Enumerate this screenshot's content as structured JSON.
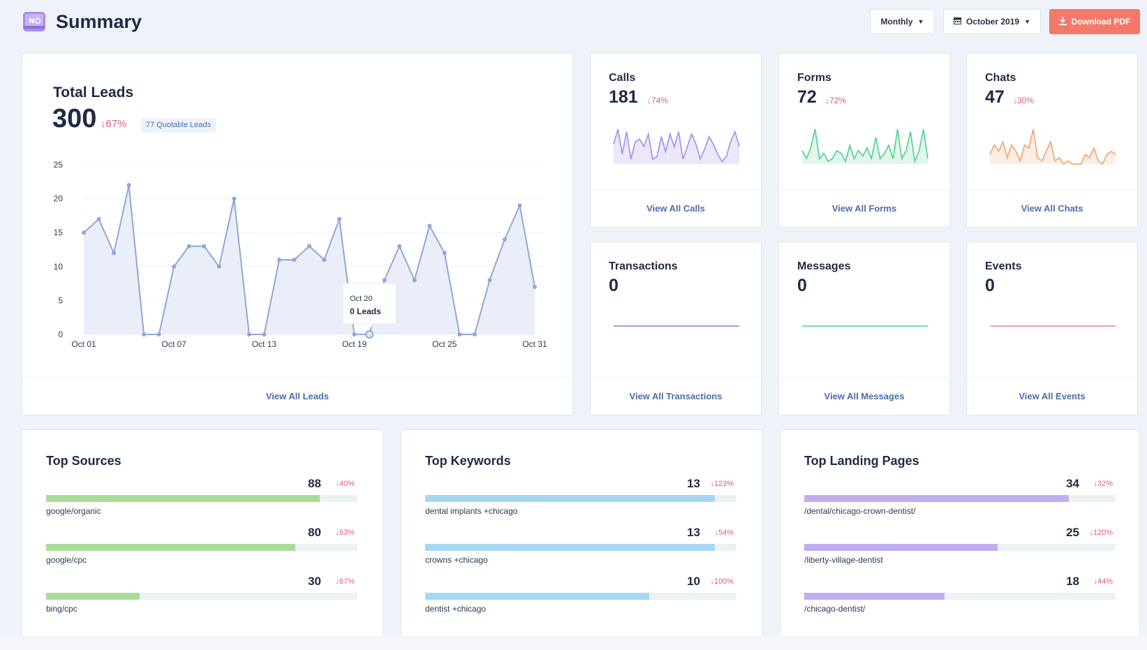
{
  "header": {
    "title": "Summary",
    "period_label": "Monthly",
    "date_label": "October 2019",
    "download_label": "Download PDF",
    "icons": {
      "logo": "logo-icon",
      "calendar": "calendar-icon",
      "download": "download-icon",
      "caret": "caret-down-icon"
    }
  },
  "leads": {
    "title": "Total Leads",
    "total": "300",
    "delta": "↓67%",
    "quotable": "77 Quotable Leads",
    "footer_link": "View All Leads",
    "tooltip": {
      "date": "Oct 20",
      "value": "0 Leads"
    }
  },
  "chart_data": {
    "type": "area",
    "title": "Total Leads",
    "x": [
      "Oct 01",
      "Oct 02",
      "Oct 03",
      "Oct 04",
      "Oct 05",
      "Oct 06",
      "Oct 07",
      "Oct 08",
      "Oct 09",
      "Oct 10",
      "Oct 11",
      "Oct 12",
      "Oct 13",
      "Oct 14",
      "Oct 15",
      "Oct 16",
      "Oct 17",
      "Oct 18",
      "Oct 19",
      "Oct 20",
      "Oct 21",
      "Oct 22",
      "Oct 23",
      "Oct 24",
      "Oct 25",
      "Oct 26",
      "Oct 27",
      "Oct 28",
      "Oct 29",
      "Oct 30",
      "Oct 31"
    ],
    "values": [
      15,
      17,
      12,
      22,
      0,
      0,
      10,
      13,
      13,
      10,
      20,
      0,
      0,
      11,
      11,
      13,
      11,
      17,
      0,
      0,
      8,
      13,
      8,
      16,
      12,
      0,
      0,
      8,
      14,
      19,
      7
    ],
    "x_ticks": [
      "Oct 01",
      "Oct 07",
      "Oct 13",
      "Oct 19",
      "Oct 25",
      "Oct 31"
    ],
    "y_ticks": [
      "0",
      "5",
      "10",
      "15",
      "20",
      "25"
    ],
    "ylim": [
      0,
      25
    ],
    "grid": true,
    "highlight": "Oct 20",
    "color": "#8fa8d8"
  },
  "metrics": [
    {
      "title": "Calls",
      "value": "181",
      "delta": "↓74%",
      "link": "View All Calls",
      "color": "#a996e6",
      "fill": "#ece7fb",
      "spark": [
        8,
        14,
        4,
        13,
        2,
        9,
        10,
        7,
        12,
        2,
        3,
        11,
        5,
        12,
        7,
        13,
        2,
        7,
        12,
        8,
        2,
        6,
        11,
        8,
        4,
        1,
        3,
        9,
        13,
        7
      ]
    },
    {
      "title": "Forms",
      "value": "72",
      "delta": "↓72%",
      "link": "View All Forms",
      "color": "#5fd19a",
      "fill": "#e2f7ec",
      "spark": [
        5,
        2,
        6,
        13,
        2,
        4,
        1,
        2,
        5,
        4,
        1,
        7,
        2,
        5,
        3,
        6,
        2,
        10,
        2,
        4,
        7,
        2,
        13,
        2,
        5,
        12,
        1,
        5,
        13,
        2
      ]
    },
    {
      "title": "Chats",
      "value": "47",
      "delta": "↓30%",
      "link": "View All Chats",
      "color": "#f5a877",
      "fill": "#fdeee4",
      "spark": [
        3,
        6,
        4,
        7,
        2,
        6,
        4,
        1,
        6,
        5,
        11,
        2,
        1,
        4,
        7,
        1,
        2,
        0,
        1,
        0,
        0,
        0,
        3,
        2,
        5,
        1,
        0,
        3,
        4,
        3
      ]
    },
    {
      "title": "Transactions",
      "value": "0",
      "link": "View All Transactions",
      "color": "#8fa8d8"
    },
    {
      "title": "Messages",
      "value": "0",
      "link": "View All Messages",
      "color": "#78d8c8"
    },
    {
      "title": "Events",
      "value": "0",
      "link": "View All Events",
      "color": "#e7a1c6"
    }
  ],
  "top_sources": {
    "title": "Top Sources",
    "color": "#a8dd98",
    "items": [
      {
        "label": "google/organic",
        "value": "88",
        "delta": "↓40%",
        "fraction": 0.88
      },
      {
        "label": "google/cpc",
        "value": "80",
        "delta": "↓63%",
        "fraction": 0.8
      },
      {
        "label": "bing/cpc",
        "value": "30",
        "delta": "↓67%",
        "fraction": 0.3
      }
    ]
  },
  "top_keywords": {
    "title": "Top Keywords",
    "color": "#a6d8f3",
    "items": [
      {
        "label": "dental implants +chicago",
        "value": "13",
        "delta": "↓123%",
        "fraction": 0.93
      },
      {
        "label": "crowns +chicago",
        "value": "13",
        "delta": "↓54%",
        "fraction": 0.93
      },
      {
        "label": "dentist +chicago",
        "value": "10",
        "delta": "↓100%",
        "fraction": 0.72
      }
    ]
  },
  "top_landing": {
    "title": "Top Landing Pages",
    "color": "#c0aef0",
    "items": [
      {
        "label": "/dental/chicago-crown-dentist/",
        "value": "34",
        "delta": "↓32%",
        "fraction": 0.85
      },
      {
        "label": "/liberty-village-dentist",
        "value": "25",
        "delta": "↓120%",
        "fraction": 0.62
      },
      {
        "label": "/chicago-dentist/",
        "value": "18",
        "delta": "↓44%",
        "fraction": 0.45
      }
    ]
  }
}
